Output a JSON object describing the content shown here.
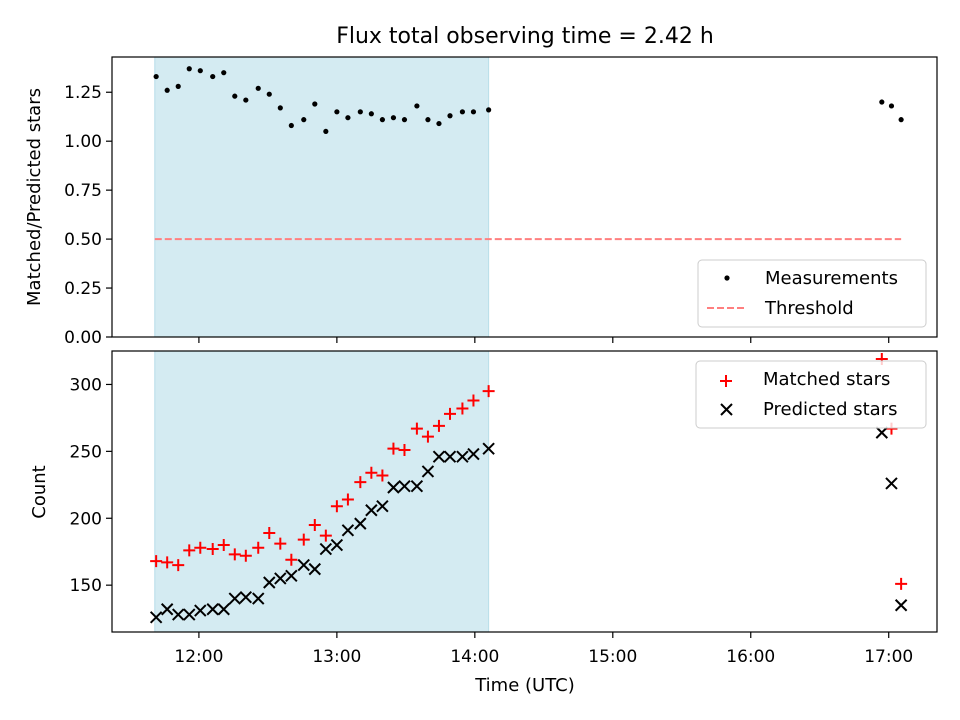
{
  "chart_data": {
    "title": "Flux total observing time = 2.42 h",
    "xlabel": "Time (UTC)",
    "x_unit": "hours UTC",
    "xlim": [
      11.37,
      17.35
    ],
    "x_ticks": [
      {
        "value": 12,
        "label": "12:00"
      },
      {
        "value": 13,
        "label": "13:00"
      },
      {
        "value": 14,
        "label": "14:00"
      },
      {
        "value": 15,
        "label": "15:00"
      },
      {
        "value": 16,
        "label": "16:00"
      },
      {
        "value": 17,
        "label": "17:00"
      }
    ],
    "shaded_interval": [
      11.68,
      14.1
    ],
    "shade_color": "#add8e6",
    "top_panel": {
      "type": "scatter",
      "ylabel": "Matched/Predicted stars",
      "ylim": [
        0,
        1.43
      ],
      "y_ticks": [
        0,
        0.25,
        0.5,
        0.75,
        1.0,
        1.25
      ],
      "y_tick_labels": [
        "0.00",
        "0.25",
        "0.50",
        "0.75",
        "1.00",
        "1.25"
      ],
      "legend_position": "lower-right",
      "series": [
        {
          "name": "Measurements",
          "marker": "dot",
          "color": "#000000",
          "x": [
            11.69,
            11.77,
            11.85,
            11.93,
            12.01,
            12.1,
            12.18,
            12.26,
            12.34,
            12.43,
            12.51,
            12.59,
            12.67,
            12.76,
            12.84,
            12.92,
            13.0,
            13.08,
            13.17,
            13.25,
            13.33,
            13.41,
            13.49,
            13.58,
            13.66,
            13.74,
            13.82,
            13.91,
            13.99,
            14.1,
            16.95,
            17.02,
            17.09
          ],
          "y": [
            1.33,
            1.26,
            1.28,
            1.37,
            1.36,
            1.33,
            1.35,
            1.23,
            1.21,
            1.27,
            1.24,
            1.17,
            1.08,
            1.11,
            1.19,
            1.05,
            1.15,
            1.12,
            1.15,
            1.14,
            1.11,
            1.12,
            1.11,
            1.18,
            1.11,
            1.09,
            1.13,
            1.15,
            1.15,
            1.16,
            1.2,
            1.18,
            1.11
          ]
        },
        {
          "name": "Threshold",
          "style": "dashed",
          "color": "#ff7f7f",
          "x": [
            11.68,
            17.09
          ],
          "y": [
            0.5,
            0.5
          ]
        }
      ]
    },
    "bottom_panel": {
      "type": "scatter",
      "ylabel": "Count",
      "ylim": [
        115,
        325
      ],
      "y_ticks": [
        150,
        200,
        250,
        300
      ],
      "y_tick_labels": [
        "150",
        "200",
        "250",
        "300"
      ],
      "legend_position": "upper-right",
      "series": [
        {
          "name": "Matched stars",
          "marker": "plus",
          "color": "#ff0000",
          "x": [
            11.69,
            11.77,
            11.85,
            11.93,
            12.01,
            12.1,
            12.18,
            12.26,
            12.34,
            12.43,
            12.51,
            12.59,
            12.67,
            12.76,
            12.84,
            12.92,
            13.0,
            13.08,
            13.17,
            13.25,
            13.33,
            13.41,
            13.49,
            13.58,
            13.66,
            13.74,
            13.82,
            13.91,
            13.99,
            14.1,
            16.95,
            17.02,
            17.09
          ],
          "y": [
            168,
            167,
            165,
            176,
            178,
            177,
            180,
            173,
            172,
            178,
            189,
            181,
            169,
            184,
            195,
            187,
            209,
            214,
            227,
            234,
            232,
            252,
            251,
            267,
            261,
            269,
            278,
            282,
            288,
            295,
            319,
            267,
            151
          ]
        },
        {
          "name": "Predicted stars",
          "marker": "x",
          "color": "#000000",
          "x": [
            11.69,
            11.77,
            11.85,
            11.93,
            12.01,
            12.1,
            12.18,
            12.26,
            12.34,
            12.43,
            12.51,
            12.59,
            12.67,
            12.76,
            12.84,
            12.92,
            13.0,
            13.08,
            13.17,
            13.25,
            13.33,
            13.41,
            13.49,
            13.58,
            13.66,
            13.74,
            13.82,
            13.91,
            13.99,
            14.1,
            16.95,
            17.02,
            17.09
          ],
          "y": [
            126,
            132,
            128,
            128,
            131,
            132,
            132,
            140,
            141,
            140,
            152,
            155,
            157,
            165,
            162,
            177,
            180,
            191,
            196,
            206,
            209,
            223,
            224,
            224,
            235,
            246,
            246,
            246,
            248,
            252,
            264,
            226,
            135
          ]
        }
      ]
    }
  }
}
